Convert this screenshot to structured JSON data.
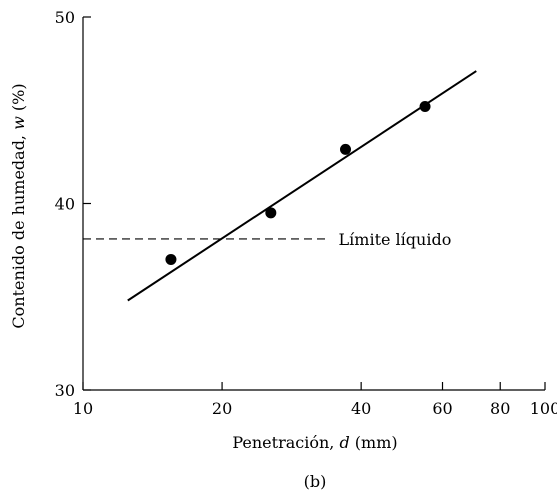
{
  "chart_data": {
    "type": "scatter",
    "caption": "(b)",
    "xlabel": {
      "prefix": "Penetración, ",
      "variable": "d",
      "suffix": " (mm)"
    },
    "ylabel": {
      "prefix": "Contenido de humedad, ",
      "variable": "w",
      "suffix": " (%)"
    },
    "x_scale": "log",
    "xlim": [
      10,
      100
    ],
    "ylim": [
      30,
      50
    ],
    "x_ticks": [
      10,
      20,
      40,
      60,
      80,
      100
    ],
    "x_tick_labels": [
      "10",
      "20",
      "40",
      "60",
      "80",
      "100"
    ],
    "y_ticks": [
      30,
      40,
      50
    ],
    "y_tick_labels": [
      "30",
      "40",
      "50"
    ],
    "grid": false,
    "points": [
      {
        "x": 15.5,
        "y": 37.0
      },
      {
        "x": 25.5,
        "y": 39.5
      },
      {
        "x": 37.0,
        "y": 42.9
      },
      {
        "x": 55.0,
        "y": 45.2
      }
    ],
    "fit_line": {
      "x": [
        12.5,
        71.0
      ],
      "y": [
        34.8,
        47.1
      ]
    },
    "reference_line": {
      "y": 38.1,
      "x_end": 34.0,
      "style": "dashed",
      "label": "Límite líquido"
    }
  }
}
